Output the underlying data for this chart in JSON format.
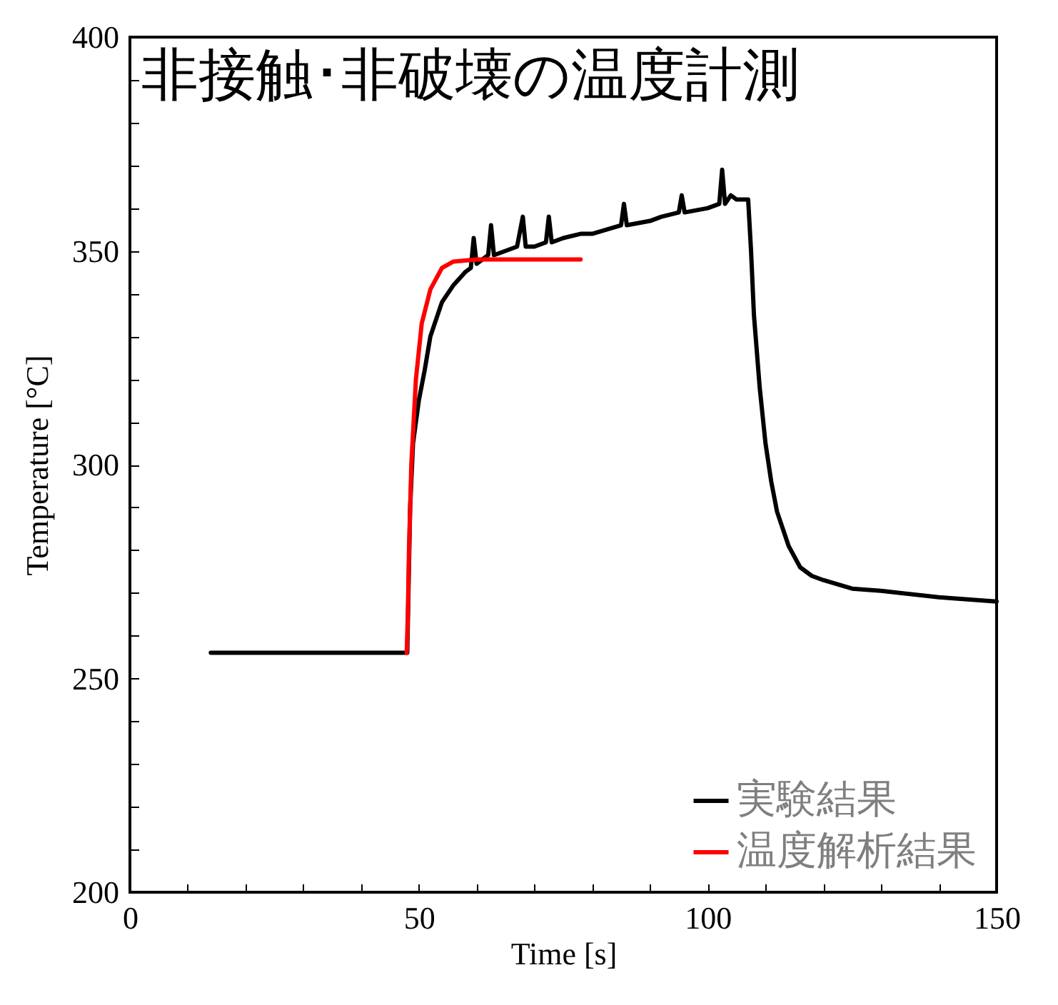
{
  "chart_data": {
    "type": "line",
    "title": "非接触･非破壊の温度計測",
    "xlabel": "Time [s]",
    "ylabel": "Temperature [°C]",
    "xlim": [
      0,
      150
    ],
    "ylim": [
      200,
      400
    ],
    "xticks": [
      0,
      {
        "value": 10,
        "label": null
      },
      {
        "value": 20,
        "label": null
      },
      {
        "value": 30,
        "label": null
      },
      {
        "value": 40,
        "label": null
      },
      50,
      {
        "value": 60,
        "label": null
      },
      {
        "value": 70,
        "label": null
      },
      {
        "value": 80,
        "label": null
      },
      {
        "value": 90,
        "label": null
      },
      100,
      {
        "value": 110,
        "label": null
      },
      {
        "value": 120,
        "label": null
      },
      {
        "value": 130,
        "label": null
      },
      {
        "value": 140,
        "label": null
      },
      150
    ],
    "yticks": [
      200,
      {
        "value": 210,
        "label": null
      },
      {
        "value": 220,
        "label": null
      },
      {
        "value": 230,
        "label": null
      },
      {
        "value": 240,
        "label": null
      },
      250,
      {
        "value": 260,
        "label": null
      },
      {
        "value": 270,
        "label": null
      },
      {
        "value": 280,
        "label": null
      },
      {
        "value": 290,
        "label": null
      },
      300,
      {
        "value": 310,
        "label": null
      },
      {
        "value": 320,
        "label": null
      },
      {
        "value": 330,
        "label": null
      },
      {
        "value": 340,
        "label": null
      },
      350,
      {
        "value": 360,
        "label": null
      },
      {
        "value": 370,
        "label": null
      },
      {
        "value": 380,
        "label": null
      },
      {
        "value": 390,
        "label": null
      },
      400
    ],
    "grid": false,
    "legend": "bottom right",
    "marker": "none",
    "line_style": "solid",
    "series": [
      {
        "name": "実験結果",
        "color": "#000000",
        "x": [
          14,
          20,
          30,
          40,
          47.5,
          48,
          48.5,
          49,
          50,
          51,
          52,
          54,
          56,
          58,
          59,
          59.5,
          60,
          61,
          62,
          62.5,
          63,
          65,
          67,
          68,
          68.5,
          70,
          72,
          72.5,
          73,
          75,
          78,
          80,
          85,
          85.5,
          86,
          90,
          92,
          95,
          95.5,
          96,
          100,
          102,
          102.5,
          103,
          104,
          105,
          106,
          107,
          107.5,
          108,
          109,
          110,
          111,
          112,
          114,
          116,
          118,
          120,
          125,
          130,
          140,
          150
        ],
        "values": [
          256,
          256,
          256,
          256,
          256,
          256,
          290,
          305,
          315,
          322,
          330,
          338,
          342,
          345,
          346,
          353,
          347,
          348,
          349,
          356,
          349,
          350,
          351,
          358,
          351,
          351,
          352,
          358,
          352,
          353,
          354,
          354,
          356,
          361,
          356,
          357,
          358,
          359,
          363,
          359,
          360,
          361,
          369,
          361,
          363,
          362,
          362,
          362,
          350,
          335,
          318,
          305,
          296,
          289,
          281,
          276,
          274,
          273,
          271,
          270.5,
          269,
          268
        ]
      },
      {
        "name": "温度解析結果",
        "color": "#ff0000",
        "x": [
          47.9,
          48.1,
          48.3,
          48.7,
          49.5,
          50.5,
          52,
          54,
          56,
          60,
          65,
          70,
          78
        ],
        "values": [
          256,
          265,
          280,
          300,
          320,
          333,
          341,
          346,
          347.5,
          348,
          348,
          348,
          348
        ]
      }
    ]
  }
}
